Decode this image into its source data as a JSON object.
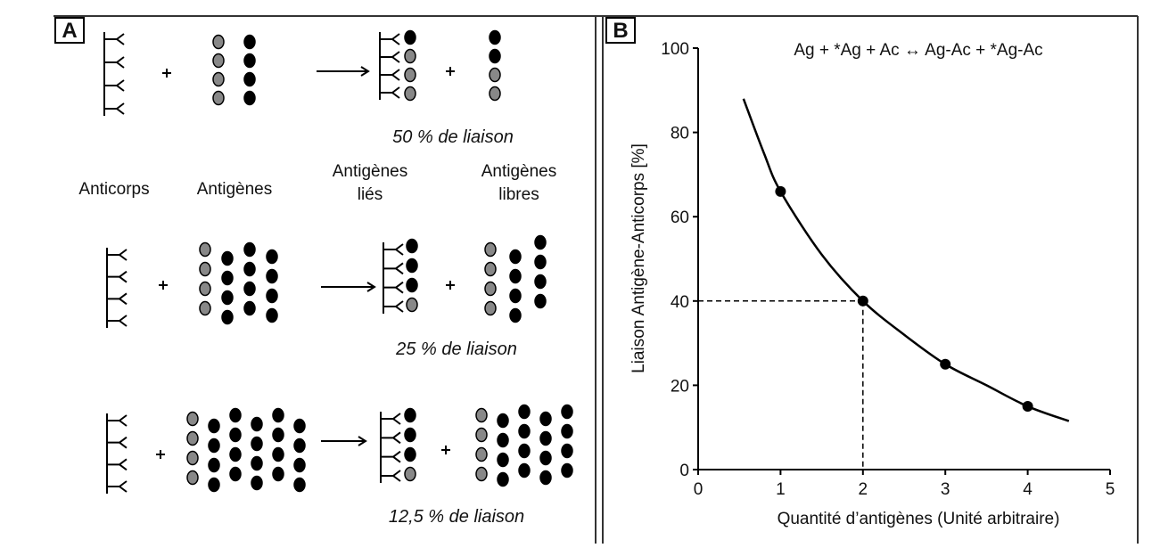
{
  "panel_a": {
    "label": "A",
    "column_labels": [
      [
        "Anticorps"
      ],
      [
        "Antigènes"
      ],
      [
        "Antigènes",
        "liés"
      ],
      [
        "Antigènes",
        "libres"
      ]
    ],
    "rows": [
      {
        "caption": "50 % de liaison"
      },
      {
        "caption": "25 % de liaison"
      },
      {
        "caption": "12,5 % de liaison"
      }
    ]
  },
  "chart_data": {
    "type": "line",
    "panel_label": "B",
    "title": "Ag + *Ag + Ac ↔ Ag-Ac + *Ag-Ac",
    "x_label": "Quantité d’antigènes (Unité arbitraire)",
    "y_label": "Liaison Antigène-Anticorps [%]",
    "xlim": [
      0,
      5
    ],
    "xticks": [
      0,
      1,
      2,
      3,
      4,
      5
    ],
    "ylim": [
      0,
      100
    ],
    "yticks": [
      0,
      20,
      40,
      60,
      80,
      100
    ],
    "series": [
      {
        "style": "line",
        "color": "#000000",
        "x": [
          0.55,
          0.8,
          1,
          1.5,
          2,
          2.5,
          3,
          3.5,
          4,
          4.5
        ],
        "values": [
          88,
          75,
          66,
          51,
          40,
          32,
          25,
          20,
          15,
          11.5
        ]
      },
      {
        "style": "markers",
        "color": "#000000",
        "x": [
          1,
          2,
          3,
          4
        ],
        "values": [
          66,
          40,
          25,
          15
        ]
      }
    ],
    "guide": {
      "x": 2,
      "y": 40
    }
  }
}
